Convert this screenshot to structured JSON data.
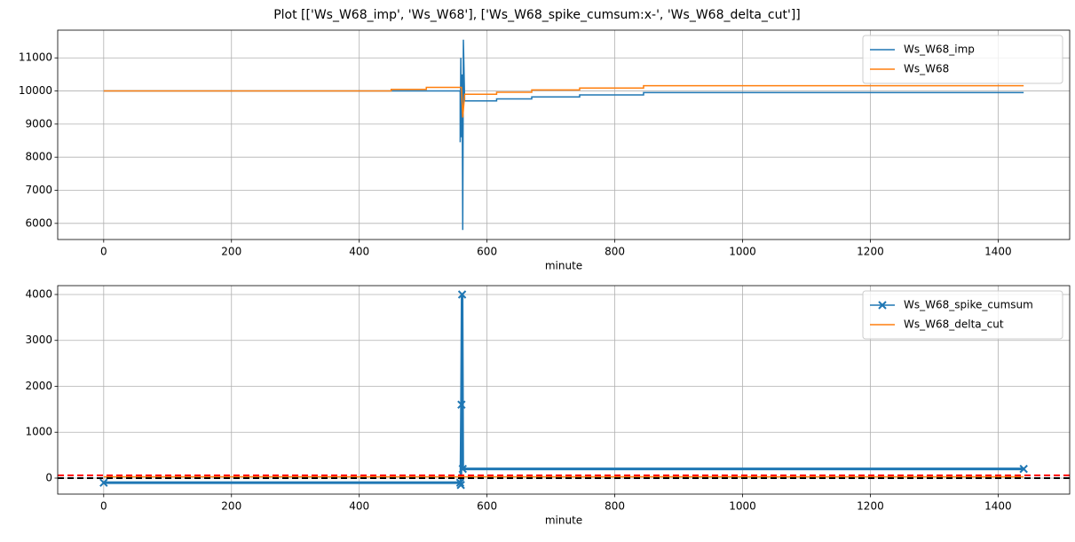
{
  "title": "Plot [['Ws_W68_imp', 'Ws_W68'], ['Ws_W68_spike_cumsum:x-', 'Ws_W68_delta_cut']]",
  "chart_data": [
    {
      "type": "line",
      "xlabel": "minute",
      "xlim": [
        -72,
        1512
      ],
      "ylim": [
        5513,
        11837
      ],
      "xticks": [
        0,
        200,
        400,
        600,
        800,
        1000,
        1200,
        1400
      ],
      "yticks": [
        6000,
        7000,
        8000,
        9000,
        10000,
        11000
      ],
      "grid": true,
      "legend": "upper right",
      "series": [
        {
          "name": "Ws_W68_imp",
          "color": "#1f77b4",
          "x": [
            0,
            558,
            558,
            559,
            560,
            561,
            562,
            563,
            565,
            615,
            615,
            670,
            670,
            745,
            745,
            845,
            845,
            1440
          ],
          "values": [
            10000,
            10000,
            8450,
            11000,
            8600,
            10500,
            5800,
            11550,
            9700,
            9700,
            9760,
            9760,
            9820,
            9820,
            9880,
            9880,
            9950,
            9950
          ]
        },
        {
          "name": "Ws_W68",
          "color": "#ff7f0e",
          "x": [
            0,
            450,
            450,
            505,
            505,
            560,
            562,
            565,
            615,
            615,
            670,
            670,
            745,
            745,
            845,
            845,
            1440
          ],
          "values": [
            10000,
            10000,
            10050,
            10050,
            10110,
            10110,
            9200,
            9900,
            9900,
            9960,
            9960,
            10030,
            10030,
            10090,
            10090,
            10160,
            10160
          ]
        }
      ]
    },
    {
      "type": "line",
      "xlabel": "minute",
      "xlim": [
        -72,
        1512
      ],
      "ylim": [
        -348,
        4193
      ],
      "xticks": [
        0,
        200,
        400,
        600,
        800,
        1000,
        1200,
        1400
      ],
      "yticks": [
        0,
        1000,
        2000,
        3000,
        4000
      ],
      "grid": true,
      "legend": "upper right",
      "series": [
        {
          "name": "Ws_W68_spike_cumsum",
          "color": "#1f77b4",
          "marker": "x",
          "x": [
            0,
            558,
            559,
            560,
            561,
            562,
            1440
          ],
          "values": [
            -100,
            -100,
            -150,
            1600,
            4000,
            200,
            200
          ]
        },
        {
          "name": "Ws_W68_delta_cut",
          "color": "#ff7f0e",
          "x": [
            0,
            1440
          ],
          "values": [
            30,
            30
          ]
        }
      ],
      "hlines": [
        {
          "value": 60,
          "color": "#ff0000"
        },
        {
          "value": 0,
          "color": "#000000"
        }
      ]
    }
  ]
}
